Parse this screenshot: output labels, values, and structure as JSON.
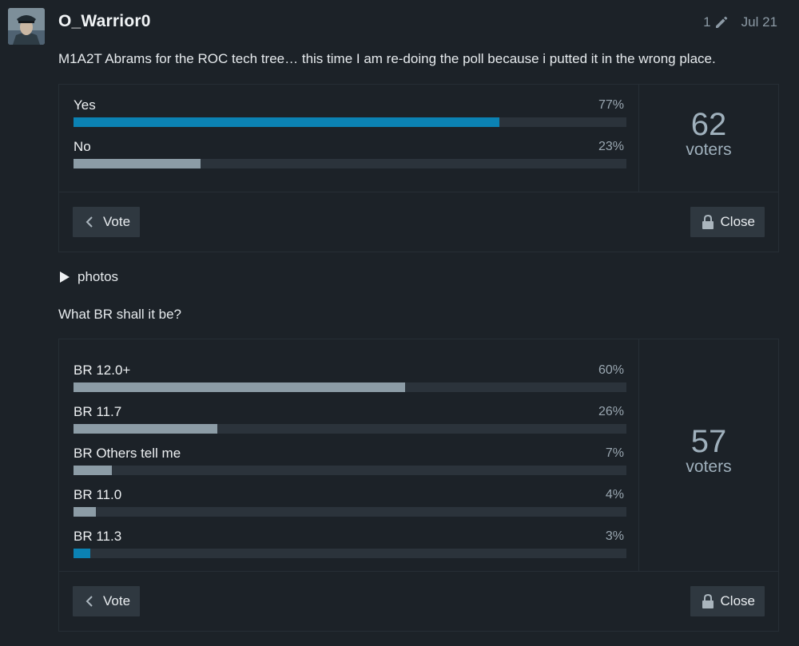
{
  "post": {
    "username": "O_Warrior0",
    "edit_count": "1",
    "date": "Jul 21",
    "intro": "M1A2T Abrams for the ROC tech tree… this time I am re-doing the poll because i putted it in the wrong place.",
    "details_label": "photos",
    "question": "What BR shall it be?"
  },
  "polls": [
    {
      "options": [
        {
          "label": "Yes",
          "pct": "77%",
          "value": 77,
          "top": true
        },
        {
          "label": "No",
          "pct": "23%",
          "value": 23,
          "top": false
        }
      ],
      "voters_count": "62",
      "voters_label": "voters",
      "vote_label": "Vote",
      "close_label": "Close"
    },
    {
      "options": [
        {
          "label": "BR 12.0+",
          "pct": "60%",
          "value": 60,
          "top": false
        },
        {
          "label": "BR 11.7",
          "pct": "26%",
          "value": 26,
          "top": false
        },
        {
          "label": "BR Others tell me",
          "pct": "7%",
          "value": 7,
          "top": false
        },
        {
          "label": "BR 11.0",
          "pct": "4%",
          "value": 4,
          "top": false
        },
        {
          "label": "BR 11.3",
          "pct": "3%",
          "value": 3,
          "top": true
        }
      ],
      "voters_count": "57",
      "voters_label": "voters",
      "vote_label": "Vote",
      "close_label": "Close"
    }
  ],
  "colors": {
    "background": "#1c2228",
    "accent_bar": "#0b82b3",
    "default_bar": "#8c9ca6",
    "track": "#2b333b"
  },
  "icons": {
    "edit": "pencil-icon",
    "details": "triangle-right-icon",
    "vote": "chevron-left-icon",
    "close": "lock-icon"
  }
}
